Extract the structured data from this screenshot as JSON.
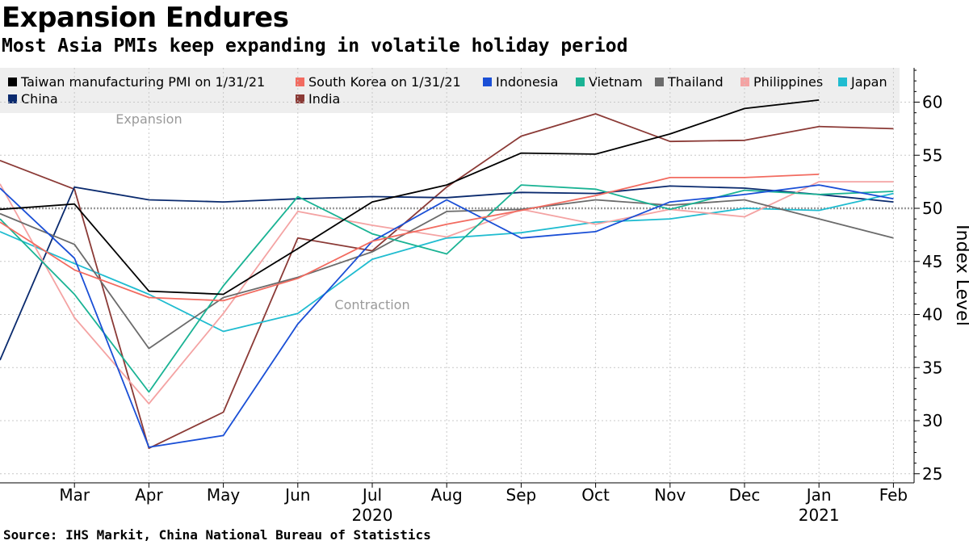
{
  "header": {
    "title": "Expansion Endures",
    "subtitle": "Most Asia PMIs keep expanding in volatile holiday period"
  },
  "footer": {
    "source": "Source: IHS Markit, China National Bureau of Statistics"
  },
  "chart_data": {
    "type": "line",
    "ylabel": "Index Level",
    "ylim": [
      24,
      64
    ],
    "yticks": [
      25,
      30,
      35,
      40,
      45,
      50,
      55,
      60
    ],
    "x_labels": [
      "Mar",
      "Apr",
      "May",
      "Jun",
      "Jul",
      "Aug",
      "Sep",
      "Oct",
      "Nov",
      "Dec",
      "Jan",
      "Feb"
    ],
    "x_years": [
      {
        "label": "2020",
        "at": "Jul"
      },
      {
        "label": "2021",
        "at": "Jan"
      }
    ],
    "x_months": [
      "2020-02",
      "2020-03",
      "2020-04",
      "2020-05",
      "2020-06",
      "2020-07",
      "2020-08",
      "2020-09",
      "2020-10",
      "2020-11",
      "2020-12",
      "2021-01",
      "2021-02"
    ],
    "reference_line": 50,
    "annotations": [
      {
        "text": "Expansion",
        "month": "2020-04",
        "y": 58
      },
      {
        "text": "Contraction",
        "month": "2020-07",
        "y": 40.5
      }
    ],
    "series": [
      {
        "name": "Taiwan manufacturing PMI on 1/31/21",
        "color": "#000000",
        "values": [
          49.9,
          50.4,
          42.2,
          41.9,
          46.2,
          50.6,
          52.2,
          55.2,
          55.1,
          57.0,
          59.4,
          60.2,
          null
        ]
      },
      {
        "name": "South Korea on 1/31/21",
        "color": "#f26b60",
        "values": [
          48.7,
          44.2,
          41.6,
          41.3,
          43.4,
          46.9,
          48.5,
          49.8,
          51.2,
          52.9,
          52.9,
          53.2,
          null
        ]
      },
      {
        "name": "Indonesia",
        "color": "#1a4fd6",
        "values": [
          51.9,
          45.3,
          27.5,
          28.6,
          39.1,
          46.9,
          50.8,
          47.2,
          47.8,
          50.6,
          51.3,
          52.2,
          50.9
        ]
      },
      {
        "name": "Vietnam",
        "color": "#1ab394",
        "values": [
          49.0,
          41.9,
          32.7,
          42.7,
          51.1,
          47.6,
          45.7,
          52.2,
          51.8,
          49.9,
          51.7,
          51.3,
          51.6
        ]
      },
      {
        "name": "Thailand",
        "color": "#6b6b6b",
        "values": [
          49.5,
          46.6,
          36.8,
          41.6,
          43.5,
          45.9,
          49.7,
          49.9,
          50.8,
          50.3,
          50.8,
          49.0,
          47.2
        ]
      },
      {
        "name": "Philippines",
        "color": "#f4a3a3",
        "values": [
          52.3,
          39.7,
          31.6,
          40.1,
          49.7,
          48.4,
          47.3,
          49.9,
          48.5,
          49.9,
          49.2,
          52.5,
          52.5
        ]
      },
      {
        "name": "Japan",
        "color": "#20bcd0",
        "values": [
          47.8,
          44.8,
          41.9,
          38.4,
          40.1,
          45.2,
          47.2,
          47.7,
          48.7,
          49.0,
          50.0,
          49.8,
          51.4
        ]
      },
      {
        "name": "China",
        "color": "#0a2a6e",
        "values": [
          35.7,
          52.0,
          50.8,
          50.6,
          50.9,
          51.1,
          51.0,
          51.5,
          51.4,
          52.1,
          51.9,
          51.3,
          50.6
        ]
      },
      {
        "name": "India",
        "color": "#8b3a36",
        "values": [
          54.5,
          51.8,
          27.4,
          30.8,
          47.2,
          46.0,
          52.0,
          56.8,
          58.9,
          56.3,
          56.4,
          57.7,
          57.5
        ]
      }
    ]
  }
}
